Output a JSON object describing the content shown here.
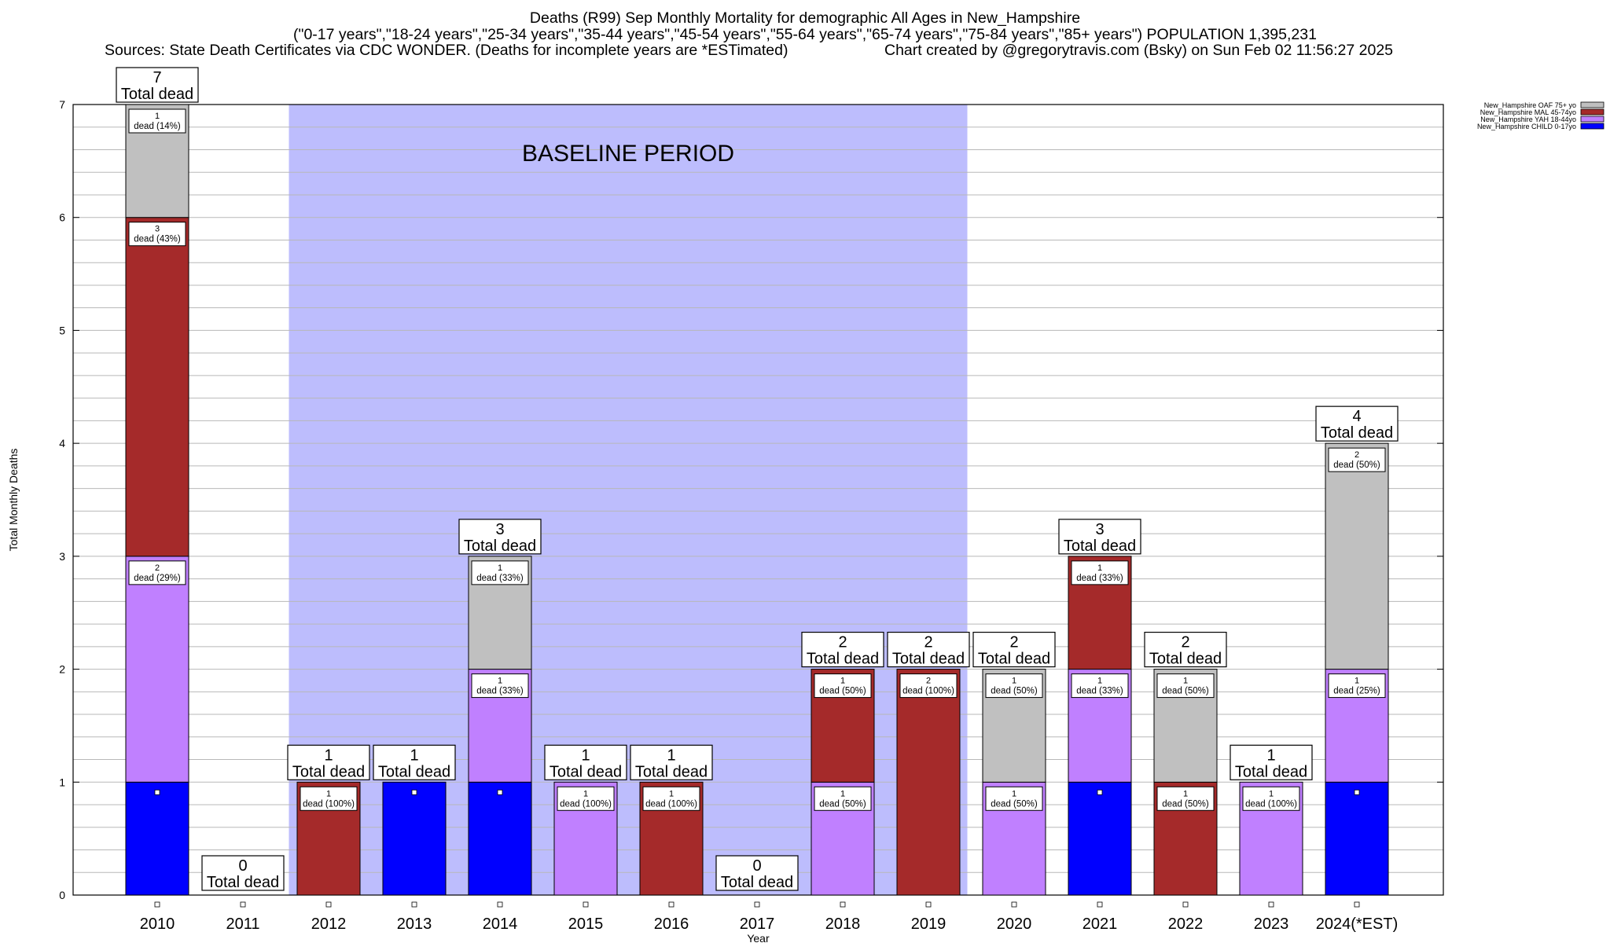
{
  "header": {
    "title": "Deaths (R99) Sep Monthly Mortality for demographic All Ages in New_Hampshire",
    "subtitle": "(\"0-17 years\",\"18-24 years\",\"25-34 years\",\"35-44 years\",\"45-54 years\",\"55-64 years\",\"65-74 years\",\"75-84 years\",\"85+ years\") POPULATION 1,395,231",
    "sources": "Sources: State Death Certificates via CDC WONDER. (Deaths for incomplete years are *ESTimated)",
    "credit": "Chart created by @gregorytravis.com (Bsky) on Sun Feb 02 11:56:27 2025"
  },
  "chart_data": {
    "type": "bar",
    "stacked": true,
    "xlabel": "Year",
    "ylabel": "Total Monthly Deaths",
    "ylim": [
      0,
      7
    ],
    "yticks": [
      "0",
      "1",
      "2",
      "3",
      "4",
      "5",
      "6",
      "7"
    ],
    "categories": [
      "2010",
      "2011",
      "2012",
      "2013",
      "2014",
      "2015",
      "2016",
      "2017",
      "2018",
      "2019",
      "2020",
      "2021",
      "2022",
      "2023",
      "2024(*EST)"
    ],
    "baseline": {
      "label": "BASELINE PERIOD",
      "from": "2012",
      "to": "2019",
      "color": "#bdbdfd"
    },
    "total_label": "Total dead",
    "series": [
      {
        "name": "New_Hampshire CHILD 0-17yo",
        "color": "#0000ff",
        "values": [
          1,
          0,
          0,
          1,
          1,
          0,
          0,
          0,
          0,
          0,
          0,
          1,
          0,
          0,
          1
        ]
      },
      {
        "name": "New_Hampshire YAH 18-44yo",
        "color": "#c080ff",
        "values": [
          2,
          0,
          0,
          0,
          1,
          1,
          0,
          0,
          1,
          0,
          1,
          1,
          0,
          1,
          1
        ]
      },
      {
        "name": "New_Hampshire MAL 45-74yo",
        "color": "#a52a2a",
        "values": [
          3,
          0,
          1,
          0,
          0,
          0,
          1,
          0,
          1,
          2,
          0,
          1,
          1,
          0,
          0
        ]
      },
      {
        "name": "New_Hampshire OAF 75+ yo",
        "color": "#c0c0c0",
        "values": [
          1,
          0,
          0,
          0,
          1,
          0,
          0,
          0,
          0,
          0,
          1,
          0,
          1,
          0,
          2
        ]
      }
    ],
    "totals": [
      7,
      0,
      1,
      1,
      3,
      1,
      1,
      0,
      2,
      2,
      2,
      3,
      2,
      1,
      4
    ],
    "segment_labels": [
      [
        "",
        "",
        "",
        "",
        "",
        "",
        "",
        "",
        "",
        "",
        "",
        "",
        "",
        "",
        ""
      ],
      [
        "dead (29%)",
        "",
        "",
        "",
        "dead (33%)",
        "dead (100%)",
        "",
        "",
        "dead (50%)",
        "",
        "dead (50%)",
        "dead (33%)",
        "",
        "dead (100%)",
        "dead (25%)"
      ],
      [
        "dead (43%)",
        "",
        "dead (100%)",
        "",
        "",
        "",
        "dead (100%)",
        "",
        "dead (50%)",
        "dead (100%)",
        "",
        "dead (33%)",
        "dead (50%)",
        "",
        ""
      ],
      [
        "dead (14%)",
        "",
        "",
        "",
        "dead (33%)",
        "",
        "",
        "",
        "",
        "",
        "dead (50%)",
        "",
        "dead (50%)",
        "",
        "dead (50%)"
      ]
    ],
    "legend_position": "top-right"
  }
}
